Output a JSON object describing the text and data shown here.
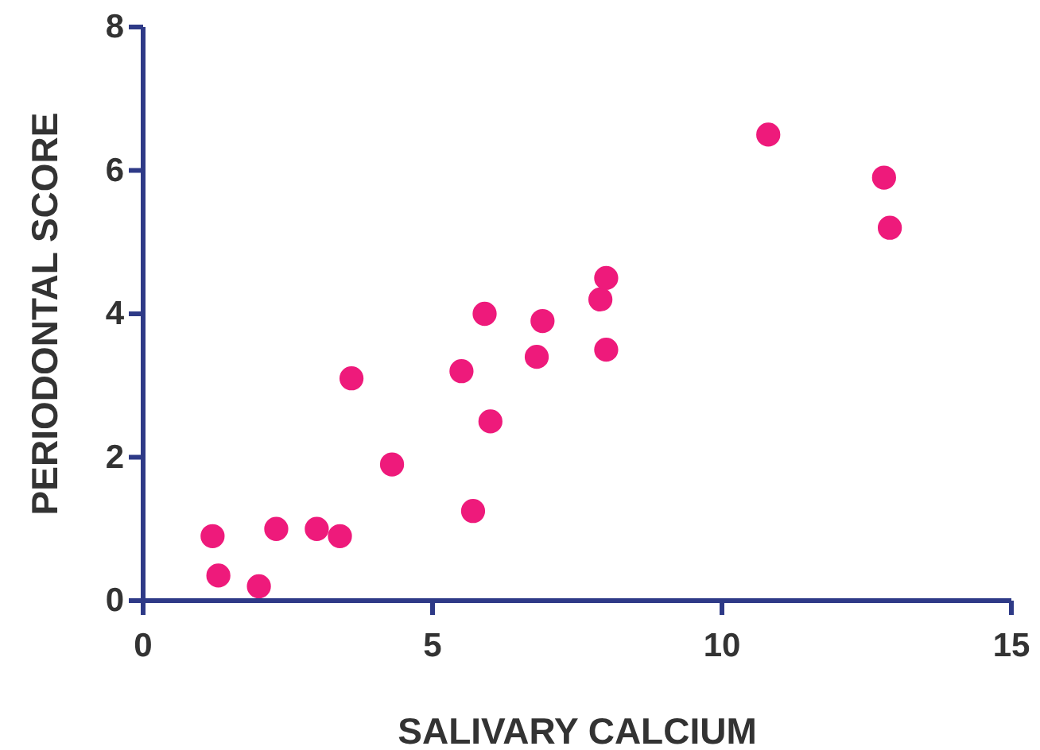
{
  "chart_data": {
    "type": "scatter",
    "xlabel": "SALIVARY CALCIUM",
    "ylabel": "PERIODONTAL SCORE",
    "x": [
      1.2,
      1.3,
      2.0,
      2.3,
      3.0,
      3.4,
      3.6,
      4.3,
      5.5,
      5.7,
      5.9,
      6.0,
      6.8,
      6.9,
      7.9,
      8.0,
      8.0,
      10.8,
      12.8,
      12.9
    ],
    "values": [
      0.9,
      0.35,
      0.2,
      1.0,
      1.0,
      0.9,
      3.1,
      1.9,
      3.2,
      1.25,
      4.0,
      2.5,
      3.4,
      3.9,
      4.2,
      4.5,
      3.5,
      6.5,
      5.9,
      5.2
    ],
    "color": "#ee1a7b",
    "marker": "circle",
    "xlim": [
      0,
      15
    ],
    "xticks": [
      0,
      5,
      10,
      15
    ],
    "ylim": [
      0,
      8
    ],
    "yticks": [
      0,
      2,
      4,
      6,
      8
    ],
    "grid": false
  }
}
